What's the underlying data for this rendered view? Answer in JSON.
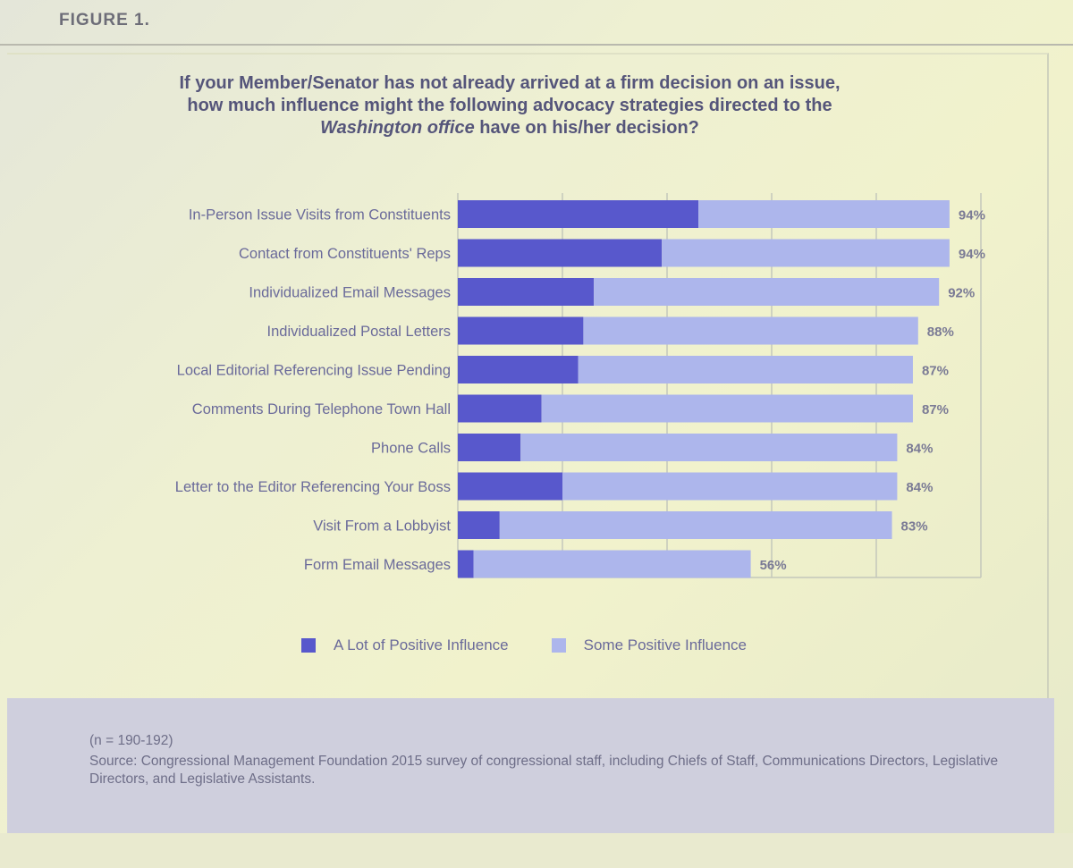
{
  "figure_label": "FIGURE 1.",
  "question": {
    "line1": "If your Member/Senator has not already arrived at a firm decision on an issue,",
    "line2": "how much influence might the following advocacy strategies directed to the",
    "line3_emph": "Washington office",
    "line3_rest": " have on his/her decision?"
  },
  "colors": {
    "a_lot": "#5858cc",
    "some": "#adb6ec",
    "gridline": "#c4c7bb"
  },
  "chart_data": {
    "type": "bar",
    "orientation": "horizontal",
    "stacked": true,
    "title": "If your Member/Senator has not already arrived at a firm decision on an issue, how much influence might the following advocacy strategies directed to the Washington office have on his/her decision?",
    "categories": [
      "In-Person Issue Visits from Constituents",
      "Contact from Constituents' Reps",
      "Individualized Email Messages",
      "Individualized Postal Letters",
      "Local Editorial Referencing Issue Pending",
      "Comments During Telephone Town Hall",
      "Phone Calls",
      "Letter to the Editor Referencing Your Boss",
      "Visit From a Lobbyist",
      "Form Email Messages"
    ],
    "series": [
      {
        "name": "A Lot of Positive Influence",
        "values": [
          46,
          39,
          26,
          24,
          23,
          16,
          12,
          20,
          8,
          3
        ]
      },
      {
        "name": "Some Positive Influence",
        "values": [
          48,
          55,
          66,
          64,
          64,
          71,
          72,
          64,
          75,
          53
        ]
      }
    ],
    "totals": [
      94,
      94,
      92,
      88,
      87,
      87,
      84,
      84,
      83,
      56
    ],
    "total_labels": [
      "94%",
      "94%",
      "92%",
      "88%",
      "87%",
      "87%",
      "84%",
      "84%",
      "83%",
      "56%"
    ],
    "xlim": [
      0,
      100
    ],
    "grid": true,
    "legend_position": "bottom"
  },
  "legend": {
    "a_lot_label": "A Lot of Positive Influence",
    "some_label": "Some Positive Influence"
  },
  "footer": {
    "n_note": "(n = 190-192)",
    "source": "Source: Congressional Management Foundation 2015 survey of congressional staff, including Chiefs of Staff, Communications Directors, Legislative Directors, and Legislative Assistants."
  }
}
